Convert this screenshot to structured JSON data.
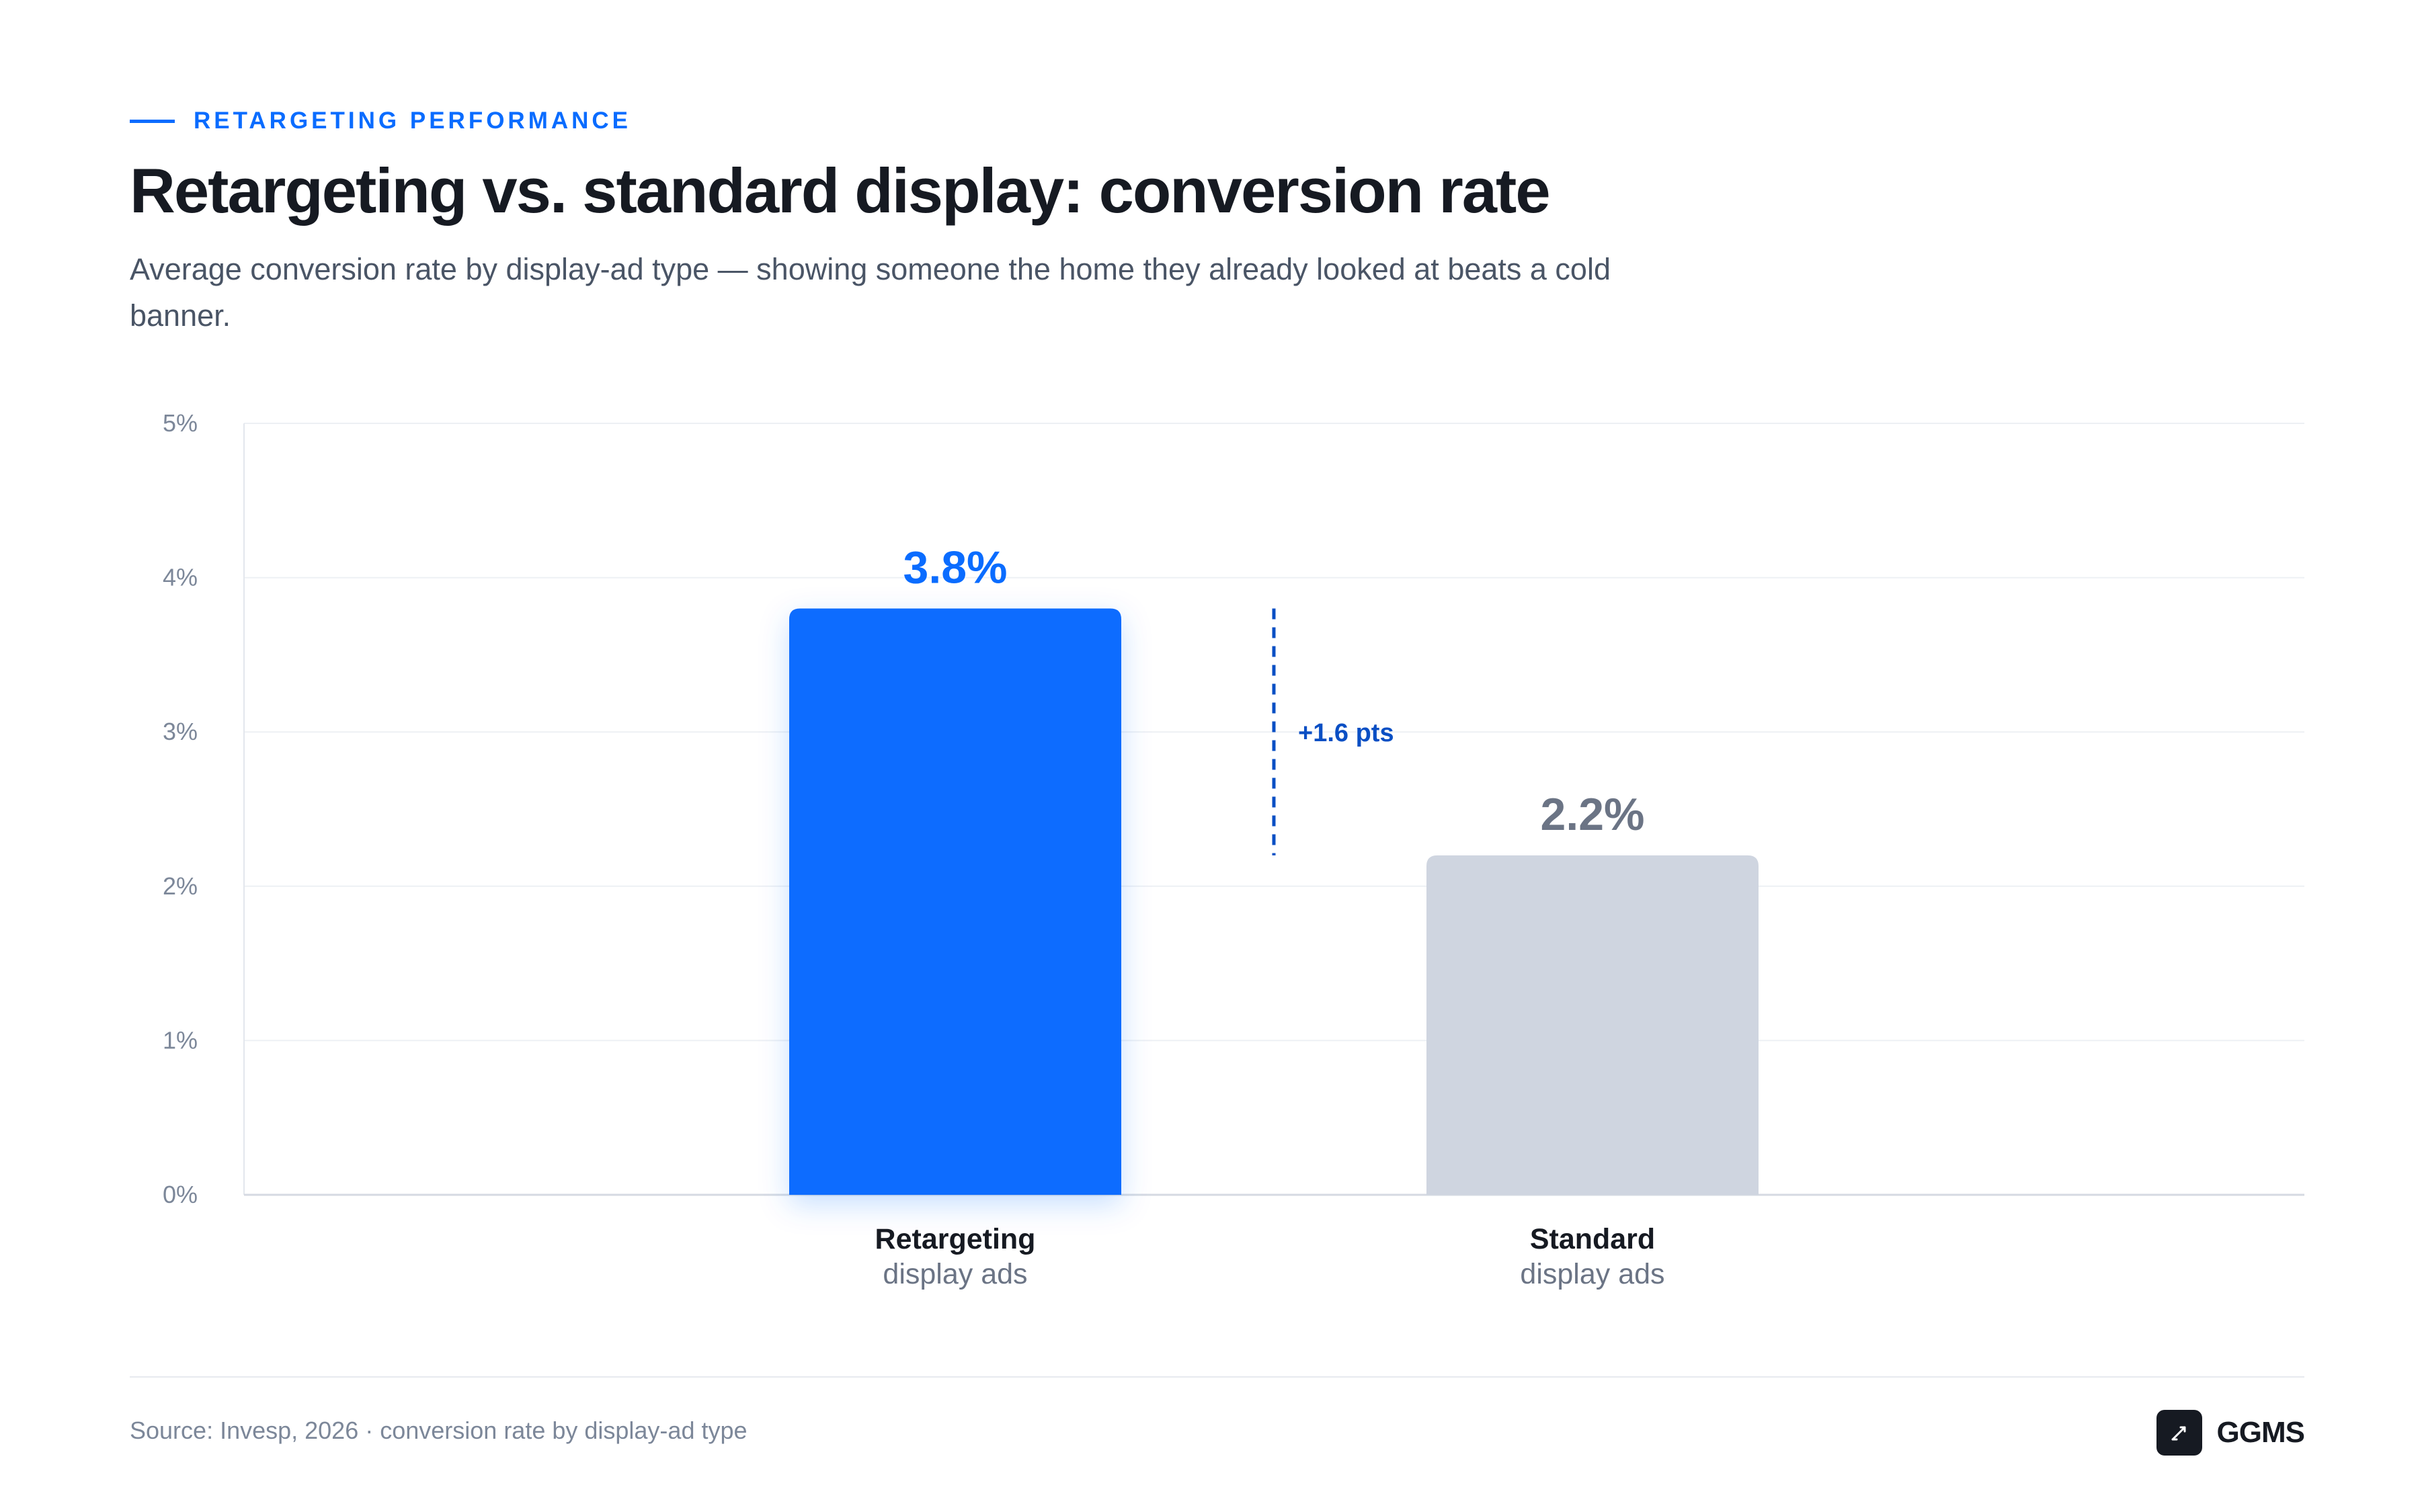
{
  "header": {
    "eyebrow": "RETARGETING PERFORMANCE",
    "title": "Retargeting vs. standard display: conversion rate",
    "subtitle": "Average conversion rate by display-ad type — showing someone the home they already looked at beats a cold banner."
  },
  "chart_data": {
    "type": "bar",
    "categories": [
      {
        "line1": "Retargeting",
        "line2": "display ads"
      },
      {
        "line1": "Standard",
        "line2": "display ads"
      }
    ],
    "values": [
      3.8,
      2.2
    ],
    "value_labels": [
      "3.8%",
      "2.2%"
    ],
    "bar_colors": [
      "#0A6CFF",
      "#CFD5E0"
    ],
    "value_label_colors": [
      "#0A6CFF",
      "#6B7485"
    ],
    "ylim": [
      0,
      5
    ],
    "yticks": [
      0,
      1,
      2,
      3,
      4,
      5
    ],
    "ytick_labels": [
      "0%",
      "1%",
      "2%",
      "3%",
      "4%",
      "5%"
    ],
    "grid": true,
    "legend": "none",
    "annotation": {
      "text": "+1.6 pts",
      "from": 2.2,
      "to": 3.8,
      "color": "#0A4FC4"
    }
  },
  "footer": {
    "source": "Source: Invesp, 2026 · conversion rate by display-ad type",
    "brand": "GGMS"
  },
  "colors": {
    "accent": "#0A6CFF",
    "title": "#161A22",
    "muted": "#7C8799"
  }
}
